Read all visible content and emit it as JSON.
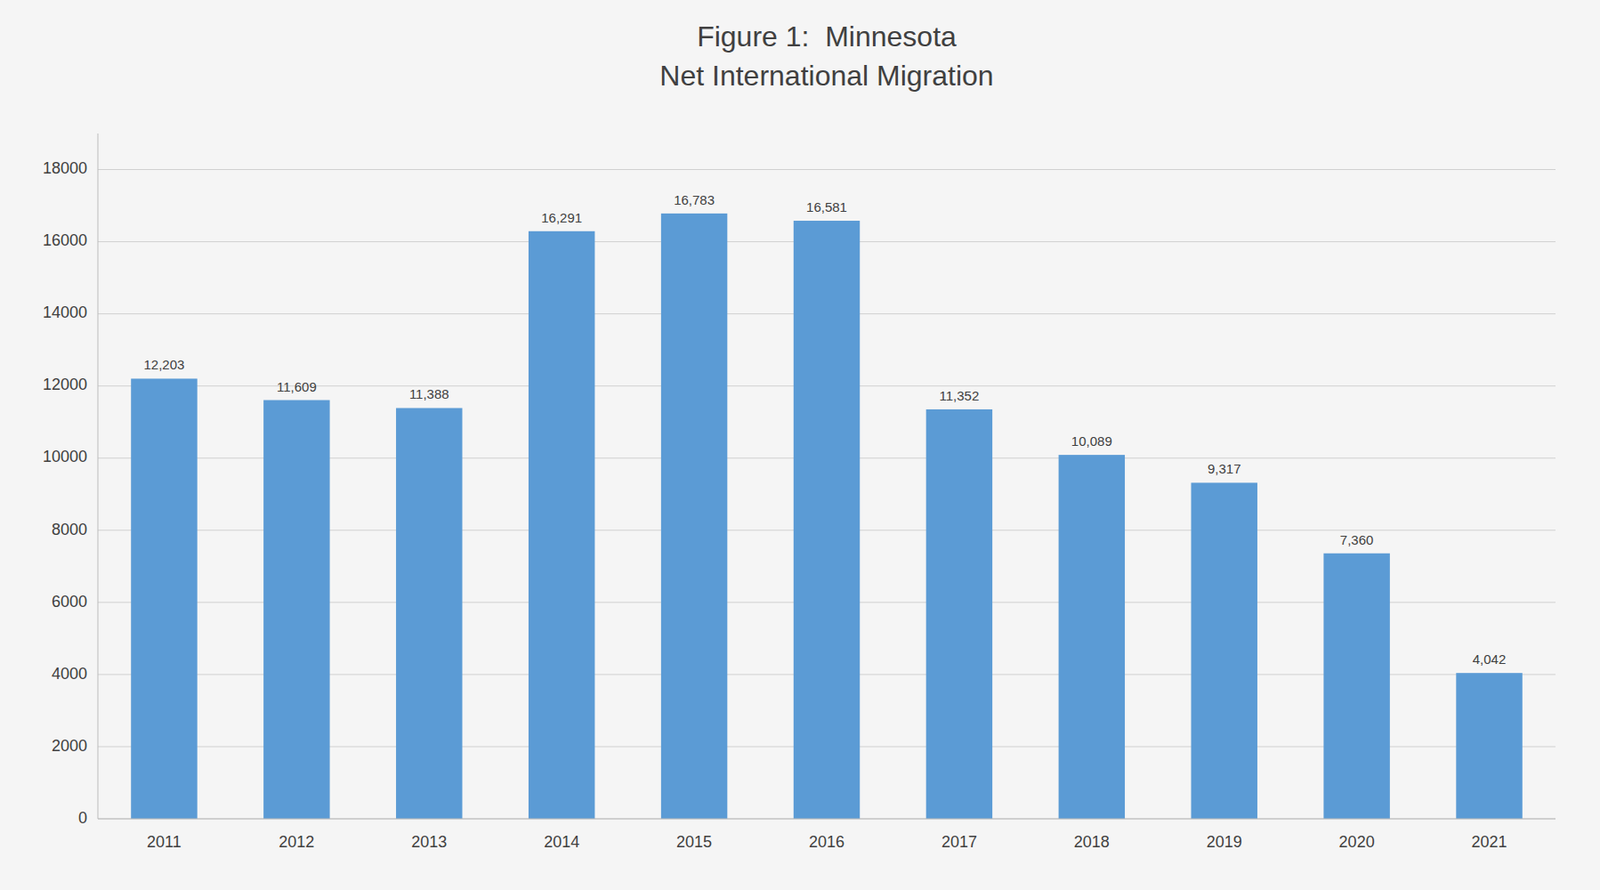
{
  "chart_data": {
    "type": "bar",
    "title": "Figure 1:  Minnesota\nNet International Migration",
    "categories": [
      "2011",
      "2012",
      "2013",
      "2014",
      "2015",
      "2016",
      "2017",
      "2018",
      "2019",
      "2020",
      "2021"
    ],
    "values": [
      12203,
      11609,
      11388,
      16291,
      16783,
      16581,
      11352,
      10089,
      9317,
      7360,
      4042
    ],
    "value_labels": [
      "12,203",
      "11,609",
      "11,388",
      "16,291",
      "16,783",
      "16,581",
      "11,352",
      "10,089",
      "9,317",
      "7,360",
      "4,042"
    ],
    "data_labels": true,
    "color": "#5b9bd5",
    "ylim": [
      0,
      19000
    ],
    "yticks": [
      0,
      2000,
      4000,
      6000,
      8000,
      10000,
      12000,
      14000,
      16000,
      18000
    ],
    "grid": true
  }
}
